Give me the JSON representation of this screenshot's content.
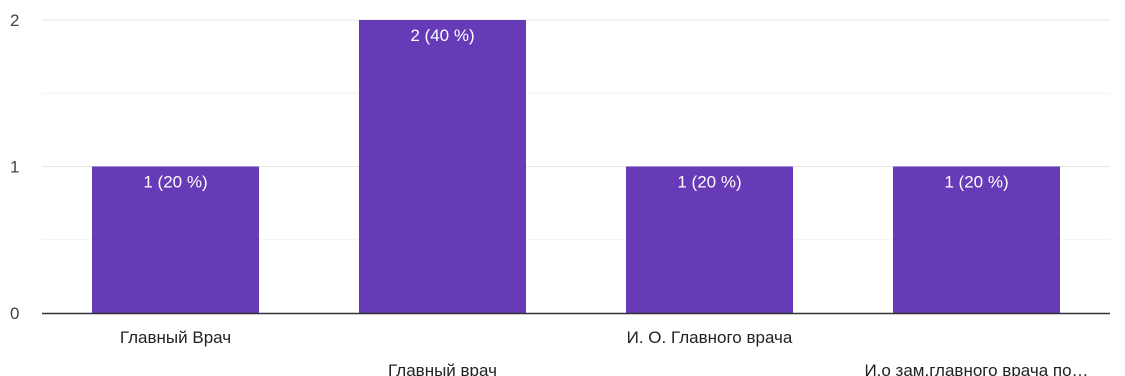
{
  "chart_data": {
    "type": "bar",
    "categories": [
      "Главный Врач",
      "Главный врач",
      "И. О. Главного врача",
      "И.о зам.главного врача по…"
    ],
    "values": [
      1,
      2,
      1,
      1
    ],
    "data_labels": [
      "1 (20 %)",
      "2 (40 %)",
      "1 (20 %)",
      "1 (20 %)"
    ],
    "title": "",
    "xlabel": "",
    "ylabel": "",
    "ylim": [
      0,
      2
    ],
    "yticks": [
      "0",
      "1",
      "2"
    ],
    "grid": true,
    "colors": {
      "bar": "#673AB7",
      "grid_major": "#e6e6e6",
      "grid_minor": "#f2f2f2",
      "axis": "#333333"
    }
  }
}
